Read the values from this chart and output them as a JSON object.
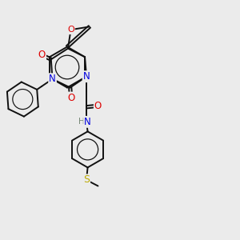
{
  "bg_color": "#ebebeb",
  "atom_colors": {
    "C": "#000000",
    "N": "#0000dd",
    "O": "#dd0000",
    "S": "#bbaa00",
    "H": "#778877"
  },
  "bond_color": "#111111",
  "bond_width": 1.4,
  "figsize": [
    3.0,
    3.0
  ],
  "dpi": 100,
  "xlim": [
    0,
    10
  ],
  "ylim": [
    0,
    10
  ]
}
